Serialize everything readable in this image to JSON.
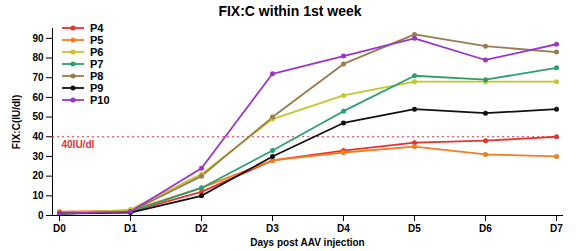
{
  "chart_data": {
    "type": "line",
    "title": "FIX:C within 1st week",
    "x_label": "Days post AAV injection",
    "y_label": "FIX:C(IU/dl)",
    "categories": [
      "D0",
      "D1",
      "D2",
      "D3",
      "D4",
      "D5",
      "D6",
      "D7"
    ],
    "series": [
      {
        "name": "P4",
        "color": "#e8322e",
        "values": [
          1.5,
          2,
          12,
          28,
          33,
          37,
          38,
          40
        ]
      },
      {
        "name": "P5",
        "color": "#f57c22",
        "values": [
          2,
          2.5,
          14,
          28,
          32,
          35,
          31,
          30
        ]
      },
      {
        "name": "P6",
        "color": "#c2c82a",
        "values": [
          1,
          3,
          21,
          49,
          61,
          68,
          68,
          68
        ]
      },
      {
        "name": "P7",
        "color": "#2e9e6e",
        "values": [
          1,
          2,
          14,
          33,
          53,
          71,
          69,
          75
        ]
      },
      {
        "name": "P8",
        "color": "#9b7b4e",
        "values": [
          1,
          2,
          20,
          50,
          77,
          92,
          86,
          83
        ]
      },
      {
        "name": "P9",
        "color": "#111111",
        "values": [
          1,
          1.5,
          10,
          30,
          47,
          54,
          52,
          54
        ]
      },
      {
        "name": "P10",
        "color": "#9b35c9",
        "values": [
          1,
          2,
          24,
          72,
          81,
          90,
          79,
          87
        ]
      }
    ],
    "reference_line": {
      "value": 40,
      "label": "40IU/dl",
      "color": "#d9343a"
    },
    "ylim": [
      0,
      95
    ],
    "yticks": [
      0,
      10,
      20,
      30,
      40,
      50,
      60,
      70,
      80,
      90
    ],
    "grid": false,
    "legend": "top-left",
    "marker": "circle",
    "line_style": "solid"
  }
}
